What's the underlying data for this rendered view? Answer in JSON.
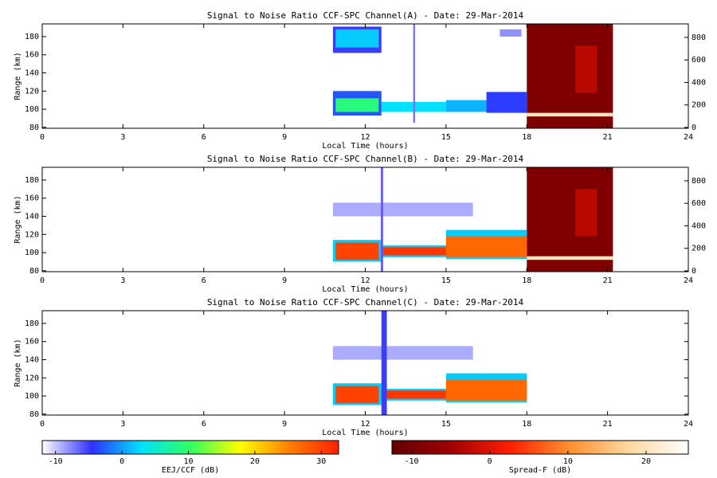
{
  "chart_data": [
    {
      "type": "heatmap",
      "title": "Signal to Noise Ratio CCF-SPC Channel(A) - Date: 29-Mar-2014",
      "xlabel": "Local Time (hours)",
      "ylabel": "Range (km)",
      "xlim": [
        0,
        24
      ],
      "xticks": [
        0,
        3,
        6,
        9,
        12,
        15,
        18,
        21,
        24
      ],
      "ylim": [
        79,
        194
      ],
      "yticks": [
        80,
        100,
        120,
        140,
        160,
        180
      ],
      "y2lim": [
        -7,
        920
      ],
      "y2ticks": [
        0,
        200,
        400,
        600,
        800
      ],
      "eej_regions": [
        {
          "x": [
            10.8,
            12.6
          ],
          "y": [
            162,
            191
          ],
          "value": -5
        },
        {
          "x": [
            10.9,
            12.5
          ],
          "y": [
            168,
            188
          ],
          "value": 2
        },
        {
          "x": [
            10.8,
            12.6
          ],
          "y": [
            93,
            120
          ],
          "value": -3
        },
        {
          "x": [
            10.9,
            12.5
          ],
          "y": [
            97,
            112
          ],
          "value": 9
        },
        {
          "x": [
            12.6,
            15
          ],
          "y": [
            97,
            108
          ],
          "value": 3
        },
        {
          "x": [
            15,
            16.5
          ],
          "y": [
            97,
            110
          ],
          "value": 1
        },
        {
          "x": [
            16.5,
            18
          ],
          "y": [
            96,
            119
          ],
          "value": -4
        },
        {
          "x": [
            17,
            17.8
          ],
          "y": [
            180,
            188
          ],
          "value": -8
        },
        {
          "x": [
            13.78,
            13.85
          ],
          "y": [
            85,
            194
          ],
          "value": -7
        }
      ],
      "spread_f_regions": [
        {
          "x": [
            18,
            21.2
          ],
          "y": [
            79,
            194
          ],
          "value": -9
        },
        {
          "x": [
            18,
            21.2
          ],
          "y": [
            92,
            96
          ],
          "value": 20
        },
        {
          "x": [
            19.8,
            20.6
          ],
          "y": [
            118,
            170
          ],
          "value": -3
        }
      ]
    },
    {
      "type": "heatmap",
      "title": "Signal to Noise Ratio CCF-SPC Channel(B) - Date: 29-Mar-2014",
      "xlabel": "Local Time (hours)",
      "ylabel": "Range (km)",
      "xlim": [
        0,
        24
      ],
      "xticks": [
        0,
        3,
        6,
        9,
        12,
        15,
        18,
        21,
        24
      ],
      "ylim": [
        79,
        194
      ],
      "yticks": [
        80,
        100,
        120,
        140,
        160,
        180
      ],
      "y2lim": [
        -7,
        920
      ],
      "y2ticks": [
        0,
        200,
        400,
        600,
        800
      ],
      "eej_regions": [
        {
          "x": [
            10.8,
            16
          ],
          "y": [
            140,
            155
          ],
          "value": -9
        },
        {
          "x": [
            10.8,
            12.6
          ],
          "y": [
            90,
            114
          ],
          "value": 2
        },
        {
          "x": [
            10.9,
            12.5
          ],
          "y": [
            92,
            111
          ],
          "value": 30
        },
        {
          "x": [
            12.6,
            15
          ],
          "y": [
            95,
            108
          ],
          "value": 2
        },
        {
          "x": [
            12.6,
            15
          ],
          "y": [
            97,
            106
          ],
          "value": 31
        },
        {
          "x": [
            15,
            18
          ],
          "y": [
            93,
            125
          ],
          "value": 2
        },
        {
          "x": [
            15,
            18
          ],
          "y": [
            95,
            118
          ],
          "value": 27
        },
        {
          "x": [
            12.58,
            12.66
          ],
          "y": [
            79,
            194
          ],
          "value": -6
        }
      ],
      "spread_f_regions": [
        {
          "x": [
            18,
            21.2
          ],
          "y": [
            79,
            194
          ],
          "value": -9
        },
        {
          "x": [
            18,
            21.2
          ],
          "y": [
            92,
            96
          ],
          "value": 20
        },
        {
          "x": [
            19.8,
            20.6
          ],
          "y": [
            118,
            170
          ],
          "value": -3
        }
      ]
    },
    {
      "type": "heatmap",
      "title": "Signal to Noise Ratio CCF-SPC Channel(C) - Date: 29-Mar-2014",
      "xlabel": "Local Time (hours)",
      "ylabel": "Range (km)",
      "xlim": [
        0,
        24
      ],
      "xticks": [
        0,
        3,
        6,
        9,
        12,
        15,
        18,
        21,
        24
      ],
      "ylim": [
        79,
        194
      ],
      "yticks": [
        80,
        100,
        120,
        140,
        160,
        180
      ],
      "eej_regions": [
        {
          "x": [
            10.8,
            16
          ],
          "y": [
            140,
            155
          ],
          "value": -9
        },
        {
          "x": [
            10.8,
            12.6
          ],
          "y": [
            90,
            114
          ],
          "value": 2
        },
        {
          "x": [
            10.9,
            12.5
          ],
          "y": [
            92,
            111
          ],
          "value": 30
        },
        {
          "x": [
            12.6,
            15
          ],
          "y": [
            95,
            108
          ],
          "value": 2
        },
        {
          "x": [
            12.6,
            15
          ],
          "y": [
            97,
            106
          ],
          "value": 31
        },
        {
          "x": [
            15,
            18
          ],
          "y": [
            93,
            125
          ],
          "value": 2
        },
        {
          "x": [
            15,
            18
          ],
          "y": [
            95,
            118
          ],
          "value": 27
        },
        {
          "x": [
            12.6,
            12.8
          ],
          "y": [
            79,
            194
          ],
          "value": -5
        }
      ],
      "spread_f_regions": []
    },
    {
      "type": "colorbar",
      "label": "EEJ/CCF (dB)",
      "xlim": [
        -12,
        32.6
      ],
      "xticks": [
        -10,
        0,
        10,
        20,
        30
      ],
      "colors": [
        "#ffffff",
        "#3030ff",
        "#00e0ff",
        "#30ff60",
        "#ffff00",
        "#ff8000",
        "#ff2000"
      ]
    },
    {
      "type": "colorbar",
      "label": "Spread-F (dB)",
      "xlim": [
        -12.5,
        25.4
      ],
      "xticks": [
        -10,
        0,
        10,
        20
      ],
      "colors": [
        "#600000",
        "#a00000",
        "#ff2000",
        "#ff9030",
        "#ffd8a0",
        "#ffffff"
      ]
    }
  ]
}
